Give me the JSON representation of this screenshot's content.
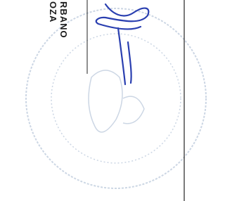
{
  "document": {
    "name_lines": [
      "OZA",
      "RBANO"
    ]
  }
}
